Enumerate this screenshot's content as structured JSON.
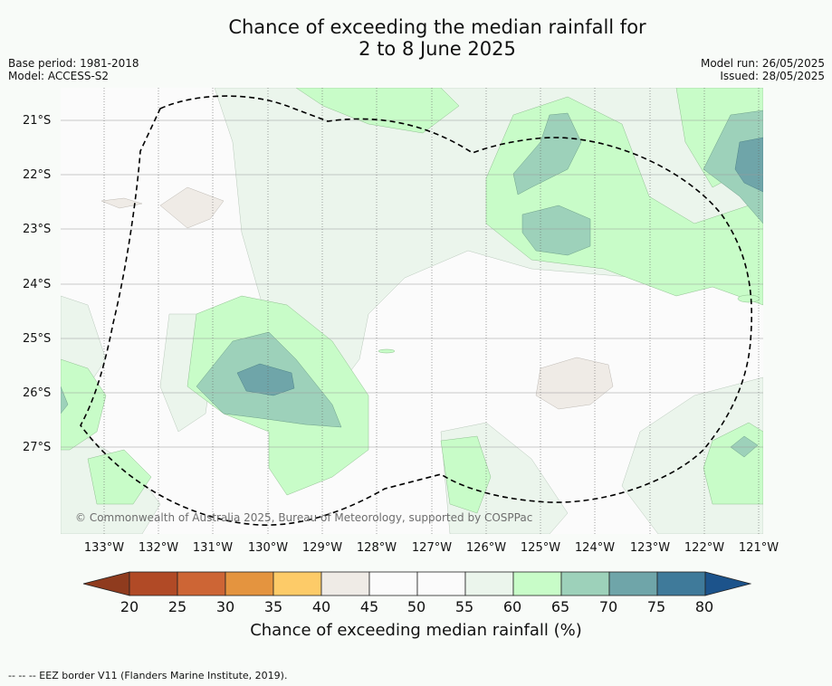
{
  "title_line1": "Chance of exceeding the median rainfall for",
  "title_line2": "2 to 8 June 2025",
  "base_period": "Base period: 1981-2018",
  "model": "Model: ACCESS-S2",
  "model_run": "Model run: 26/05/2025",
  "issued": "Issued: 28/05/2025",
  "lat_labels": [
    "21°S",
    "22°S",
    "23°S",
    "24°S",
    "25°S",
    "26°S",
    "27°S"
  ],
  "lon_labels": [
    "133°W",
    "132°W",
    "131°W",
    "130°W",
    "129°W",
    "128°W",
    "127°W",
    "126°W",
    "125°W",
    "124°W",
    "123°W",
    "122°W",
    "121°W"
  ],
  "copyright": "© Commonwealth of Australia 2025, Bureau of Meteorology, supported by COSPPac",
  "colorbar": {
    "ticks": [
      "20",
      "25",
      "30",
      "35",
      "40",
      "45",
      "50",
      "55",
      "60",
      "65",
      "70",
      "75",
      "80"
    ],
    "colors": [
      "#8f3b1e",
      "#b14a26",
      "#cd6535",
      "#e4943f",
      "#fdcb68",
      "#efebe6",
      "#fbfbfb",
      "#fbfbfb",
      "#ebf5ec",
      "#c8fcc8",
      "#9dd1ba",
      "#6fa5a9",
      "#3f7a9a",
      "#1c538b"
    ],
    "label": "Chance of exceeding median rainfall (%)"
  },
  "footer": "--  --  -- EEZ border V11 (Flanders Marine Institute, 2019)."
}
